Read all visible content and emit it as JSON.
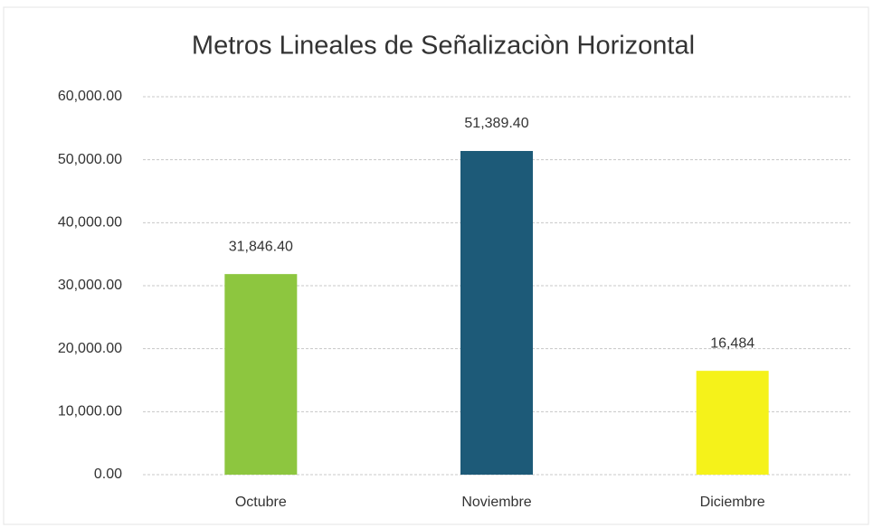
{
  "chart_data": {
    "type": "bar",
    "title": "Metros Lineales de Señalizaciòn Horizontal",
    "categories": [
      "Octubre",
      "Noviembre",
      "Diciembre"
    ],
    "values": [
      31846.4,
      51389.4,
      16484
    ],
    "value_labels": [
      "31,846.40",
      "51,389.40",
      "16,484"
    ],
    "colors": [
      "#8dc63f",
      "#1d5a78",
      "#f5f21a"
    ],
    "ylim": [
      0,
      60000
    ],
    "yticks": [
      {
        "value": 0,
        "label": "0.00"
      },
      {
        "value": 10000,
        "label": "10,000.00"
      },
      {
        "value": 20000,
        "label": "20,000.00"
      },
      {
        "value": 30000,
        "label": "30,000.00"
      },
      {
        "value": 40000,
        "label": "40,000.00"
      },
      {
        "value": 50000,
        "label": "50,000.00"
      },
      {
        "value": 60000,
        "label": "60,000.00"
      }
    ],
    "grid": true
  }
}
